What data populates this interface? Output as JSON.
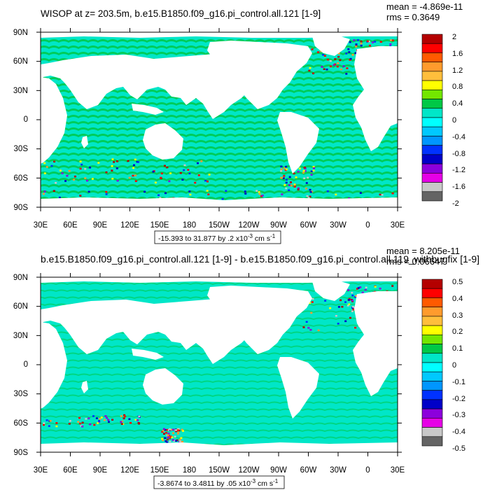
{
  "panels": [
    {
      "title": "WISOP at z= 203.5m, b.e15.B1850.f09_g16.pi_control.all.121 [1-9]",
      "stats": [
        "mean = -4.869e-11",
        "rms = 0.3649"
      ],
      "caption": "-15.393 to 31.877 by .2 x10",
      "caption_exp": "-3",
      "caption_unit": " cm s",
      "caption_unit_exp": "-1"
    },
    {
      "title": "b.e15.B1850.f09_g16.pi_control.all.121 [1-9] - b.e15.B1850.f09_g16.pi_control.all.119_withbugfix [1-9]",
      "stats": [
        "mean = 8.205e-11",
        "rms = 0.06647"
      ],
      "caption": "-3.8674 to 3.4811 by .05 x10",
      "caption_exp": "-3",
      "caption_unit": " cm s",
      "caption_unit_exp": "-1"
    }
  ],
  "colors": {
    "land": "#ffffff",
    "ocean_background": "#00ebc8",
    "palette": [
      "#b40000",
      "#ff0000",
      "#ff5a00",
      "#ff9b2d",
      "#ffbe3c",
      "#ffff00",
      "#73e600",
      "#00c846",
      "#00e6c8",
      "#00ffff",
      "#00c8ff",
      "#0096ff",
      "#0032ff",
      "#0000c8",
      "#8c00dc",
      "#e600e6",
      "#c8c8c8",
      "#646464"
    ]
  },
  "chart_data": [
    {
      "type": "heatmap",
      "title": "WISOP at z= 203.5m, b.e15.B1850.f09_g16.pi_control.all.121 [1-9]",
      "x_ticks": [
        "30E",
        "60E",
        "90E",
        "120E",
        "150E",
        "180",
        "150W",
        "120W",
        "90W",
        "60W",
        "30W",
        "0",
        "30E"
      ],
      "y_ticks": [
        "90N",
        "60N",
        "30N",
        "0",
        "30S",
        "60S",
        "90S"
      ],
      "xlim": [
        30,
        390
      ],
      "ylim": [
        -90,
        90
      ],
      "colorbar_labels": [
        "2",
        "1.6",
        "1.2",
        "0.8",
        "0.4",
        "0",
        "-0.4",
        "-0.8",
        "-1.2",
        "-1.6",
        "-2"
      ],
      "colorbar_levels": [
        2,
        -2
      ],
      "mean": -4.869e-11,
      "rms": 0.3649,
      "data_range": [
        -15.393,
        31.877
      ],
      "interval": 0.2
    },
    {
      "type": "heatmap",
      "title": "b.e15.B1850.f09_g16.pi_control.all.121 [1-9] - b.e15.B1850.f09_g16.pi_control.all.119_withbugfix [1-9]",
      "x_ticks": [
        "30E",
        "60E",
        "90E",
        "120E",
        "150E",
        "180",
        "150W",
        "120W",
        "90W",
        "60W",
        "30W",
        "0",
        "30E"
      ],
      "y_ticks": [
        "90N",
        "60N",
        "30N",
        "0",
        "30S",
        "60S",
        "90S"
      ],
      "xlim": [
        30,
        390
      ],
      "ylim": [
        -90,
        90
      ],
      "colorbar_labels": [
        "0.5",
        "0.4",
        "0.3",
        "0.2",
        "0.1",
        "0",
        "-0.1",
        "-0.2",
        "-0.3",
        "-0.4",
        "-0.5"
      ],
      "colorbar_levels": [
        0.5,
        -0.5
      ],
      "mean": 8.205e-11,
      "rms": 0.06647,
      "data_range": [
        -3.8674,
        3.4811
      ],
      "interval": 0.05
    }
  ]
}
